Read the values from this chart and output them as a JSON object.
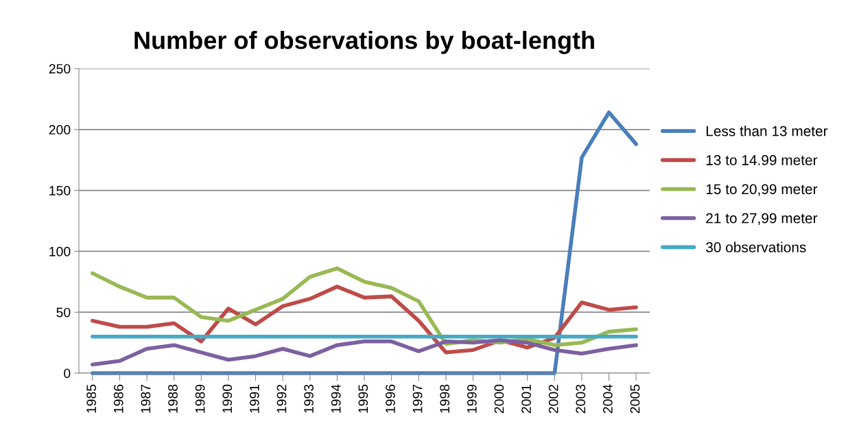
{
  "chart_data": {
    "type": "line",
    "title": "Number of observations by boat-length",
    "categories": [
      "1985",
      "1986",
      "1987",
      "1988",
      "1989",
      "1990",
      "1991",
      "1992",
      "1993",
      "1994",
      "1995",
      "1996",
      "1997",
      "1998",
      "1999",
      "2000",
      "2001",
      "2002",
      "2003",
      "2004",
      "2005"
    ],
    "series": [
      {
        "name": "Less than 13 meter",
        "color": "#4a7ebb",
        "values": [
          0,
          0,
          0,
          0,
          0,
          0,
          0,
          0,
          0,
          0,
          0,
          0,
          0,
          0,
          0,
          0,
          0,
          0,
          177,
          214,
          188
        ]
      },
      {
        "name": "13 to 14.99 meter",
        "color": "#be4b48",
        "values": [
          43,
          38,
          38,
          41,
          26,
          53,
          40,
          55,
          61,
          71,
          62,
          63,
          43,
          17,
          19,
          27,
          21,
          29,
          58,
          52,
          54
        ]
      },
      {
        "name": "15 to 20,99 meter",
        "color": "#98b954",
        "values": [
          82,
          71,
          62,
          62,
          46,
          43,
          52,
          61,
          79,
          86,
          75,
          70,
          59,
          24,
          27,
          25,
          28,
          23,
          25,
          34,
          36
        ]
      },
      {
        "name": "21 to 27,99 meter",
        "color": "#7d60a0",
        "values": [
          7,
          10,
          20,
          23,
          17,
          11,
          14,
          20,
          14,
          23,
          26,
          26,
          18,
          26,
          25,
          27,
          25,
          19,
          16,
          20,
          23
        ]
      },
      {
        "name": "30 observations",
        "color": "#46aac5",
        "values": [
          30,
          30,
          30,
          30,
          30,
          30,
          30,
          30,
          30,
          30,
          30,
          30,
          30,
          30,
          30,
          30,
          30,
          30,
          30,
          30,
          30
        ]
      }
    ],
    "ylim": [
      0,
      250
    ],
    "yticks": [
      0,
      50,
      100,
      150,
      200,
      250
    ],
    "grid": "y",
    "legend": "right",
    "marker": "none",
    "line_style": "solid"
  }
}
